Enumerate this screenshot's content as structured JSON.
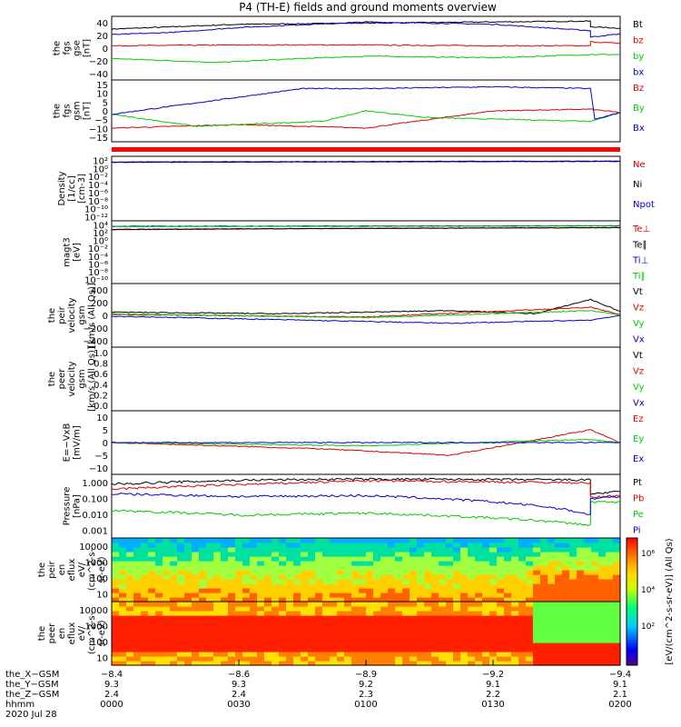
{
  "title": "P4 (TH-E) fields and ground moments overview",
  "chart_data": [
    {
      "type": "line",
      "ylabel": [
        "the",
        "fgs",
        "gse",
        "[nT]"
      ],
      "ylim": [
        -40,
        40
      ],
      "yticks": [
        "40",
        "20",
        "0",
        "−20",
        "−40"
      ],
      "series": [
        {
          "name": "Bt",
          "color": "#000000",
          "points": [
            [
              0,
              24
            ],
            [
              30,
              30
            ],
            [
              90,
              33
            ],
            [
              113,
              34
            ],
            [
              113,
              27
            ],
            [
              120,
              25
            ]
          ]
        },
        {
          "name": "bz",
          "color": "#dd0000",
          "points": [
            [
              0,
              3
            ],
            [
              30,
              4
            ],
            [
              60,
              4
            ],
            [
              90,
              3
            ],
            [
              113,
              3
            ],
            [
              113,
              8
            ],
            [
              120,
              6
            ]
          ]
        },
        {
          "name": "by",
          "color": "#00cc00",
          "points": [
            [
              0,
              -13
            ],
            [
              25,
              -18
            ],
            [
              45,
              -13
            ],
            [
              60,
              -10
            ],
            [
              90,
              -12
            ],
            [
              113,
              -8
            ],
            [
              120,
              -8
            ]
          ]
        },
        {
          "name": "bx",
          "color": "#0000cc",
          "points": [
            [
              0,
              17
            ],
            [
              15,
              20
            ],
            [
              30,
              26
            ],
            [
              60,
              33
            ],
            [
              90,
              30
            ],
            [
              113,
              22
            ],
            [
              113,
              14
            ],
            [
              120,
              18
            ]
          ]
        }
      ]
    },
    {
      "type": "line",
      "ylabel": [
        "the",
        "fgs",
        "gsm",
        "[nT]"
      ],
      "ylim": [
        -18,
        18
      ],
      "yticks": [
        "15",
        "10",
        "5",
        "0",
        "−5",
        "−10",
        "−15"
      ],
      "series": [
        {
          "name": "Bz",
          "color": "#dd0000",
          "points": [
            [
              0,
              -10
            ],
            [
              30,
              -8
            ],
            [
              60,
              -10
            ],
            [
              75,
              -5
            ],
            [
              90,
              0
            ],
            [
              113,
              1
            ],
            [
              120,
              -1
            ]
          ]
        },
        {
          "name": "By",
          "color": "#00cc00",
          "points": [
            [
              0,
              -2
            ],
            [
              20,
              -9
            ],
            [
              50,
              -6
            ],
            [
              60,
              0
            ],
            [
              75,
              -4
            ],
            [
              113,
              -6
            ],
            [
              120,
              -1
            ]
          ]
        },
        {
          "name": "Bx",
          "color": "#0000cc",
          "points": [
            [
              0,
              -2
            ],
            [
              15,
              3
            ],
            [
              30,
              8
            ],
            [
              45,
              13
            ],
            [
              60,
              13
            ],
            [
              90,
              14
            ],
            [
              113,
              13
            ],
            [
              114,
              -5
            ],
            [
              120,
              -1
            ]
          ]
        }
      ]
    },
    {
      "type": "bar",
      "ylabel": [],
      "note": "red status bar"
    },
    {
      "type": "line",
      "log": true,
      "ylabel": [
        "Density",
        "[1/cc]",
        "[cm-3]"
      ],
      "ylim": [
        1e-12,
        100
      ],
      "yticks": [
        "10²",
        "10⁰",
        "10⁻²",
        "10⁻⁴",
        "10⁻⁶",
        "10⁻⁸",
        "10⁻¹⁰",
        "10⁻¹²"
      ],
      "series": [
        {
          "name": "Ne",
          "color": "#dd0000",
          "points": [
            [
              0,
              5
            ],
            [
              120,
              8
            ]
          ]
        },
        {
          "name": "Ni",
          "color": "#000000",
          "points": [
            [
              0,
              5
            ],
            [
              120,
              8
            ]
          ]
        },
        {
          "name": "Npot",
          "color": "#0000cc",
          "points": [
            [
              0,
              6
            ],
            [
              120,
              9
            ]
          ]
        }
      ]
    },
    {
      "type": "line",
      "log": true,
      "ylabel": [
        "magt3",
        "[eV]"
      ],
      "ylim": [
        1e-10,
        10000.0
      ],
      "yticks": [
        "10⁴",
        "10²",
        "10⁰",
        "10⁻²",
        "10⁻⁴",
        "10⁻⁶",
        "10⁻⁸",
        "10⁻¹⁰"
      ],
      "series": [
        {
          "name": "Te⊥",
          "color": "#dd0000",
          "points": [
            [
              0,
              100
            ],
            [
              120,
              300
            ]
          ]
        },
        {
          "name": "Te∥",
          "color": "#000000",
          "points": [
            [
              0,
              120
            ],
            [
              120,
              300
            ]
          ]
        },
        {
          "name": "Ti⊥",
          "color": "#0000cc",
          "points": [
            [
              0,
              600
            ],
            [
              120,
              800
            ]
          ]
        },
        {
          "name": "Ti∥",
          "color": "#00cc00",
          "points": [
            [
              0,
              500
            ],
            [
              120,
              700
            ]
          ]
        }
      ]
    },
    {
      "type": "line",
      "ylabel": [
        "the",
        "peir",
        "velocity",
        "gsm",
        "[km/s (All Qs)]"
      ],
      "ylim": [
        -400,
        400
      ],
      "yticks": [
        "400",
        "200",
        "0",
        "−200",
        "−400"
      ],
      "series": [
        {
          "name": "Vt",
          "color": "#000000",
          "points": [
            [
              0,
              40
            ],
            [
              40,
              20
            ],
            [
              80,
              60
            ],
            [
              100,
              20
            ],
            [
              113,
              200
            ],
            [
              120,
              50
            ]
          ]
        },
        {
          "name": "Vz",
          "color": "#dd0000",
          "points": [
            [
              0,
              10
            ],
            [
              60,
              -20
            ],
            [
              113,
              100
            ],
            [
              120,
              10
            ]
          ]
        },
        {
          "name": "Vy",
          "color": "#00cc00",
          "points": [
            [
              0,
              20
            ],
            [
              60,
              -30
            ],
            [
              113,
              60
            ],
            [
              120,
              10
            ]
          ]
        },
        {
          "name": "Vx",
          "color": "#0000cc",
          "points": [
            [
              0,
              -10
            ],
            [
              80,
              -100
            ],
            [
              113,
              -60
            ],
            [
              120,
              0
            ]
          ]
        }
      ]
    },
    {
      "type": "line",
      "ylabel": [
        "the",
        "peer",
        "velocity",
        "gsm",
        "[km/s (All Qs)]"
      ],
      "ylim": [
        0,
        1
      ],
      "yticks": [
        "1.0",
        "0.8",
        "0.6",
        "0.4",
        "0.2",
        "0.0"
      ],
      "series": [
        {
          "name": "Vt",
          "color": "#000000",
          "points": []
        },
        {
          "name": "Vz",
          "color": "#dd0000",
          "points": []
        },
        {
          "name": "Vy",
          "color": "#00cc00",
          "points": []
        },
        {
          "name": "Vx",
          "color": "#0000cc",
          "points": []
        }
      ]
    },
    {
      "type": "line",
      "ylabel": [
        "E=−VxB",
        "[mV/m]"
      ],
      "ylim": [
        -10,
        10
      ],
      "yticks": [
        "10",
        "5",
        "0",
        "−5",
        "−10"
      ],
      "series": [
        {
          "name": "Ez",
          "color": "#dd0000",
          "points": [
            [
              0,
              0
            ],
            [
              50,
              -2
            ],
            [
              80,
              -4
            ],
            [
              113,
              4
            ],
            [
              120,
              0
            ]
          ]
        },
        {
          "name": "Ey",
          "color": "#00cc00",
          "points": [
            [
              0,
              0
            ],
            [
              60,
              -1
            ],
            [
              113,
              1
            ],
            [
              120,
              0
            ]
          ]
        },
        {
          "name": "Ex",
          "color": "#0000cc",
          "points": [
            [
              0,
              0
            ],
            [
              120,
              0
            ]
          ]
        }
      ]
    },
    {
      "type": "line",
      "log": true,
      "ylabel": [
        "Pressure",
        "[nPa]"
      ],
      "ylim": [
        0.001,
        1.0
      ],
      "yticks": [
        "1.000",
        "0.100",
        "0.010",
        "0.001"
      ],
      "series": [
        {
          "name": "Pt",
          "color": "#000000",
          "points": [
            [
              0,
              0.35
            ],
            [
              35,
              0.55
            ],
            [
              60,
              0.6
            ],
            [
              113,
              0.55
            ],
            [
              113,
              0.12
            ],
            [
              120,
              0.15
            ]
          ]
        },
        {
          "name": "Pb",
          "color": "#dd0000",
          "points": [
            [
              0,
              0.2
            ],
            [
              35,
              0.35
            ],
            [
              60,
              0.5
            ],
            [
              113,
              0.4
            ],
            [
              113,
              0.08
            ],
            [
              120,
              0.1
            ]
          ]
        },
        {
          "name": "Pe",
          "color": "#00cc00",
          "points": [
            [
              0,
              0.02
            ],
            [
              30,
              0.012
            ],
            [
              60,
              0.015
            ],
            [
              113,
              0.004
            ],
            [
              113,
              0.05
            ],
            [
              120,
              0.05
            ]
          ]
        },
        {
          "name": "Pi",
          "color": "#0000cc",
          "points": [
            [
              0,
              0.12
            ],
            [
              30,
              0.09
            ],
            [
              60,
              0.1
            ],
            [
              113,
              0.012
            ],
            [
              113,
              0.07
            ],
            [
              120,
              0.09
            ]
          ]
        }
      ]
    },
    {
      "type": "heatmap",
      "log": true,
      "ylabel": [
        "the",
        "peir",
        "en",
        "eflux",
        "eV/",
        "(cm^2-s-",
        "sr-eV)"
      ],
      "ylim": [
        5,
        20000
      ],
      "yticks": [
        "10000",
        "1000",
        "100",
        "10"
      ]
    },
    {
      "type": "heatmap",
      "log": true,
      "ylabel": [
        "the",
        "peer",
        "en",
        "eflux",
        "eV/",
        "(cm^2-s-",
        "sr-eV)"
      ],
      "ylim": [
        5,
        20000
      ],
      "yticks": [
        "10000",
        "1000",
        "100",
        "10"
      ]
    }
  ],
  "colorbar": {
    "label": "[eV/(cm^2-s-sr-eV)] (All Qs)",
    "ticks": [
      "10⁶",
      "10⁴",
      "10²"
    ]
  },
  "xaxis": {
    "range_min": [
      0,
      120
    ],
    "ticks_min": [
      0,
      30,
      60,
      90,
      120
    ],
    "rows": [
      {
        "label": "the_X−GSM",
        "values": [
          "−8.4",
          "−8.6",
          "−8.9",
          "−9.2",
          "−9.4"
        ]
      },
      {
        "label": "the_Y−GSM",
        "values": [
          "9.3",
          "9.3",
          "9.2",
          "9.1",
          "9.1"
        ]
      },
      {
        "label": "the_Z−GSM",
        "values": [
          "2.4",
          "2.4",
          "2.3",
          "2.2",
          "2.1"
        ]
      },
      {
        "label": "hhmm",
        "values": [
          "0000",
          "0030",
          "0100",
          "0130",
          "0200"
        ]
      }
    ],
    "date": "2020 Jul 28"
  }
}
